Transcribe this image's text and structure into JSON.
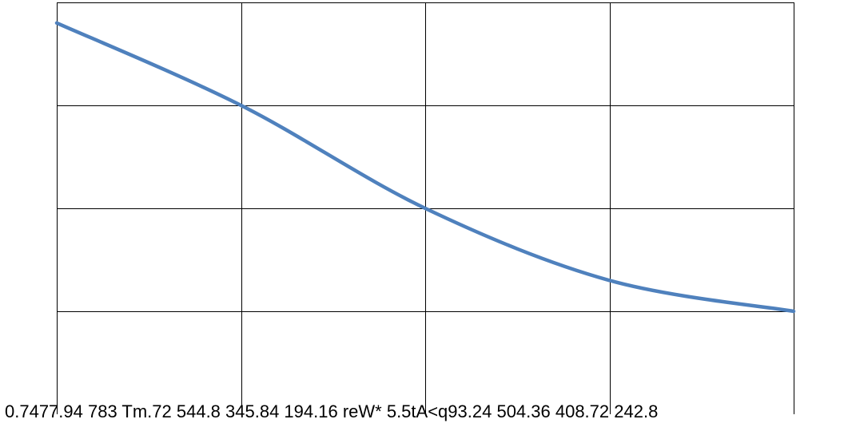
{
  "chart_data": {
    "type": "line",
    "title": "",
    "xlabel": "",
    "ylabel": "",
    "x": [
      0,
      1,
      2,
      3,
      4
    ],
    "xlim": [
      0,
      4
    ],
    "ylim": [
      0,
      4
    ],
    "grid": true,
    "legend": "none",
    "series": [
      {
        "values": [
          3.8,
          3.0,
          2.0,
          1.3,
          1.0
        ],
        "color": "#4f81bd"
      }
    ],
    "bottom_text": "0.7477.94 783 Tm.72 544.8 345.84 194.16 reW* 5.5tA<q93.24 504.36 408.72 242.8"
  }
}
